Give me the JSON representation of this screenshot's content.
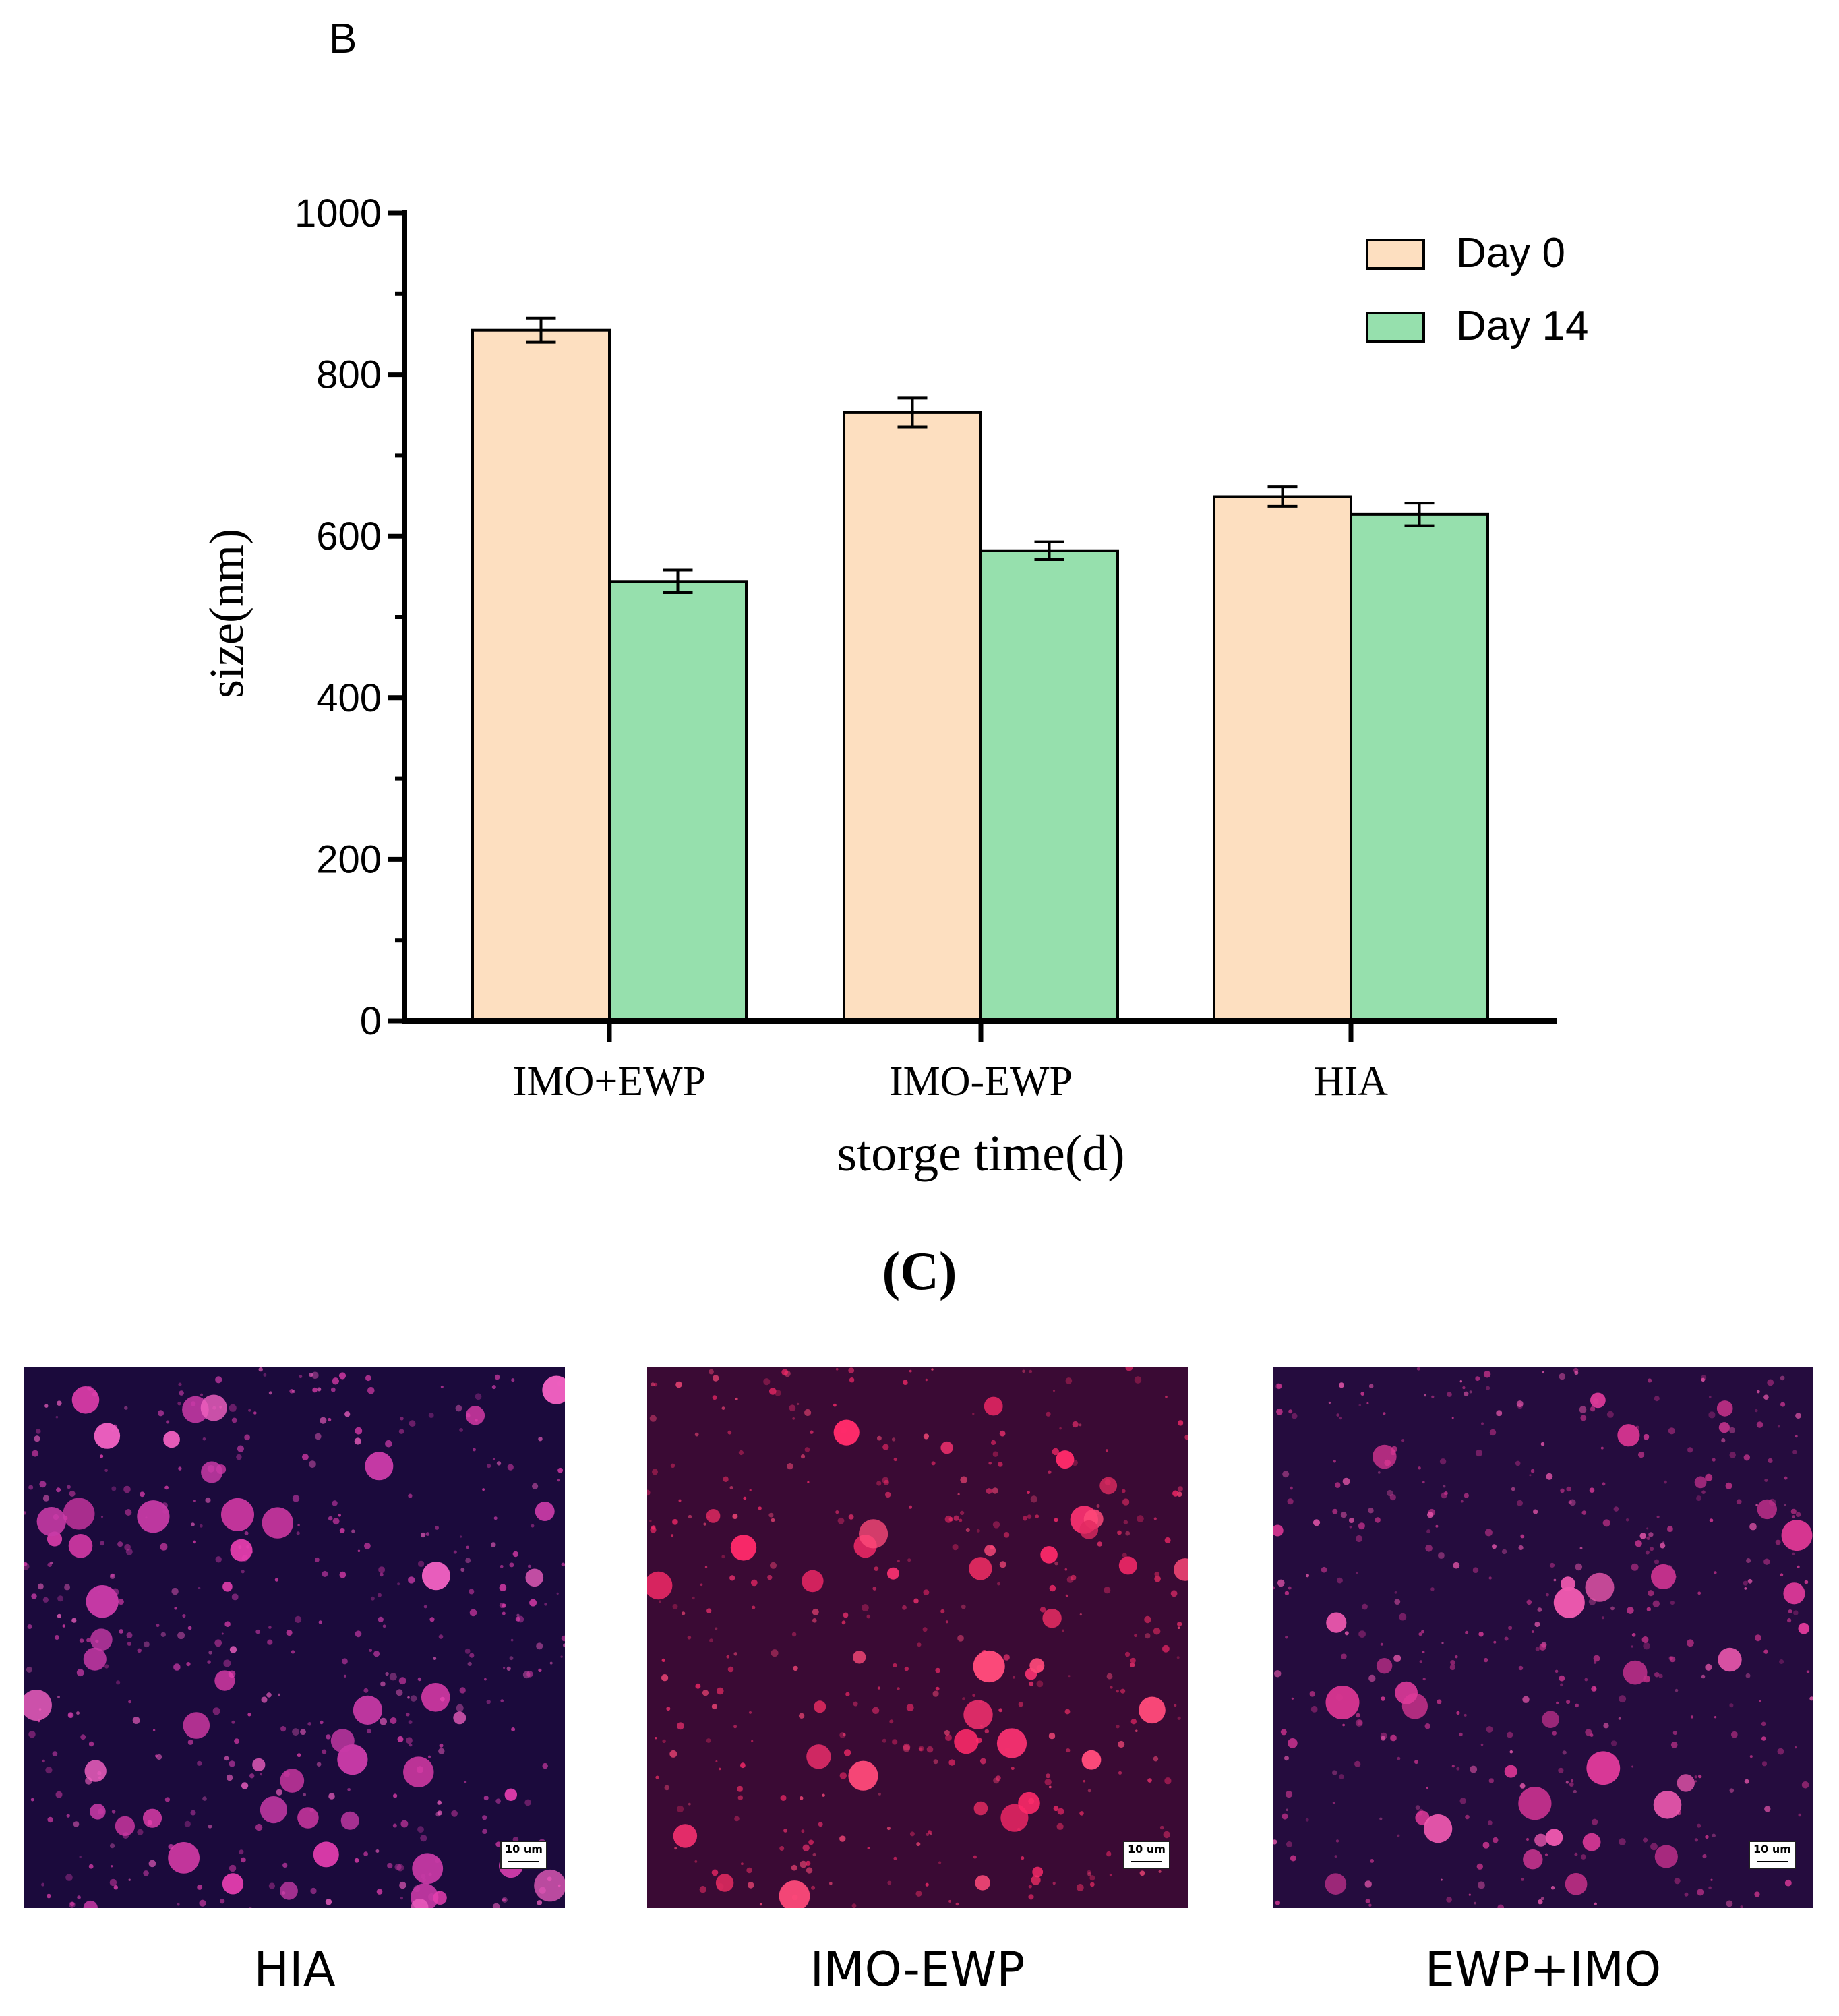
{
  "panel_b_label": "B",
  "panel_c_label": "(C)",
  "chart_data": {
    "type": "bar",
    "title": "",
    "xlabel": "storge time(d)",
    "ylabel": "size(nm)",
    "ylim": [
      0,
      1000
    ],
    "yticks": [
      0,
      200,
      400,
      600,
      800,
      1000
    ],
    "categories": [
      "IMO+EWP",
      "IMO-EWP",
      "HIA"
    ],
    "series": [
      {
        "name": "Day 0",
        "color": "#FDDFC0",
        "values": [
          855,
          753,
          649
        ],
        "errors": [
          15,
          18,
          12
        ]
      },
      {
        "name": "Day 14",
        "color": "#96E0AD",
        "values": [
          544,
          582,
          627
        ],
        "errors": [
          14,
          11,
          14
        ]
      }
    ],
    "legend_position": "top-right",
    "grid": false
  },
  "micrographs": [
    {
      "caption": "HIA",
      "scale_label": "10 um"
    },
    {
      "caption": "IMO-EWP",
      "scale_label": "10 um"
    },
    {
      "caption": "EWP+IMO",
      "scale_label": "10 um"
    }
  ]
}
